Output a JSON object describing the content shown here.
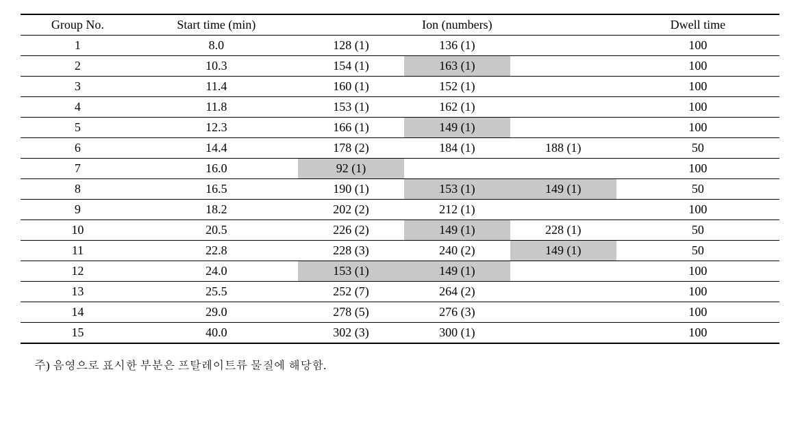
{
  "table": {
    "headers": {
      "group_no": "Group No.",
      "start_time": "Start time (min)",
      "ion_numbers": "Ion (numbers)",
      "dwell_time": "Dwell time"
    },
    "shaded_color": "#c8c8c8",
    "border_color": "#000000",
    "background_color": "#ffffff",
    "font_size_pt": 13,
    "rows": [
      {
        "group": "1",
        "start": "8.0",
        "ion1": {
          "v": "128 (1)",
          "s": false
        },
        "ion2": {
          "v": "136 (1)",
          "s": false
        },
        "ion3": {
          "v": "",
          "s": false
        },
        "dwell": "100"
      },
      {
        "group": "2",
        "start": "10.3",
        "ion1": {
          "v": "154 (1)",
          "s": false
        },
        "ion2": {
          "v": "163 (1)",
          "s": true
        },
        "ion3": {
          "v": "",
          "s": false
        },
        "dwell": "100"
      },
      {
        "group": "3",
        "start": "11.4",
        "ion1": {
          "v": "160 (1)",
          "s": false
        },
        "ion2": {
          "v": "152 (1)",
          "s": false
        },
        "ion3": {
          "v": "",
          "s": false
        },
        "dwell": "100"
      },
      {
        "group": "4",
        "start": "11.8",
        "ion1": {
          "v": "153 (1)",
          "s": false
        },
        "ion2": {
          "v": "162 (1)",
          "s": false
        },
        "ion3": {
          "v": "",
          "s": false
        },
        "dwell": "100"
      },
      {
        "group": "5",
        "start": "12.3",
        "ion1": {
          "v": "166 (1)",
          "s": false
        },
        "ion2": {
          "v": "149 (1)",
          "s": true
        },
        "ion3": {
          "v": "",
          "s": false
        },
        "dwell": "100"
      },
      {
        "group": "6",
        "start": "14.4",
        "ion1": {
          "v": "178 (2)",
          "s": false
        },
        "ion2": {
          "v": "184 (1)",
          "s": false
        },
        "ion3": {
          "v": "188 (1)",
          "s": false
        },
        "dwell": "50"
      },
      {
        "group": "7",
        "start": "16.0",
        "ion1": {
          "v": "92 (1)",
          "s": true
        },
        "ion2": {
          "v": "",
          "s": false
        },
        "ion3": {
          "v": "",
          "s": false
        },
        "dwell": "100"
      },
      {
        "group": "8",
        "start": "16.5",
        "ion1": {
          "v": "190 (1)",
          "s": false
        },
        "ion2": {
          "v": "153 (1)",
          "s": true
        },
        "ion3": {
          "v": "149 (1)",
          "s": true
        },
        "dwell": "50"
      },
      {
        "group": "9",
        "start": "18.2",
        "ion1": {
          "v": "202 (2)",
          "s": false
        },
        "ion2": {
          "v": "212 (1)",
          "s": false
        },
        "ion3": {
          "v": "",
          "s": false
        },
        "dwell": "100"
      },
      {
        "group": "10",
        "start": "20.5",
        "ion1": {
          "v": "226 (2)",
          "s": false
        },
        "ion2": {
          "v": "149 (1)",
          "s": true
        },
        "ion3": {
          "v": "228 (1)",
          "s": false
        },
        "dwell": "50"
      },
      {
        "group": "11",
        "start": "22.8",
        "ion1": {
          "v": "228 (3)",
          "s": false
        },
        "ion2": {
          "v": "240 (2)",
          "s": false
        },
        "ion3": {
          "v": "149 (1)",
          "s": true
        },
        "dwell": "50"
      },
      {
        "group": "12",
        "start": "24.0",
        "ion1": {
          "v": "153 (1)",
          "s": true
        },
        "ion2": {
          "v": "149 (1)",
          "s": true
        },
        "ion3": {
          "v": "",
          "s": false
        },
        "dwell": "100"
      },
      {
        "group": "13",
        "start": "25.5",
        "ion1": {
          "v": "252 (7)",
          "s": false
        },
        "ion2": {
          "v": "264 (2)",
          "s": false
        },
        "ion3": {
          "v": "",
          "s": false
        },
        "dwell": "100"
      },
      {
        "group": "14",
        "start": "29.0",
        "ion1": {
          "v": "278 (5)",
          "s": false
        },
        "ion2": {
          "v": "276 (3)",
          "s": false
        },
        "ion3": {
          "v": "",
          "s": false
        },
        "dwell": "100"
      },
      {
        "group": "15",
        "start": "40.0",
        "ion1": {
          "v": "302 (3)",
          "s": false
        },
        "ion2": {
          "v": "300 (1)",
          "s": false
        },
        "ion3": {
          "v": "",
          "s": false
        },
        "dwell": "100"
      }
    ]
  },
  "footnote": "주) 음영으로 표시한 부분은 프탈레이트류 물질에 해당함."
}
